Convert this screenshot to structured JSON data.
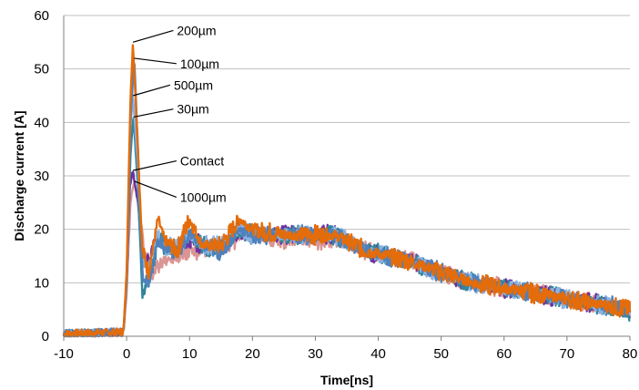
{
  "chart_data": {
    "type": "line",
    "title": "",
    "xlabel": "Time[ns]",
    "ylabel": "Discharge current [A]",
    "xlim": [
      -10,
      80
    ],
    "ylim": [
      0,
      60
    ],
    "xticks": [
      -10,
      0,
      10,
      20,
      30,
      40,
      50,
      60,
      70,
      80
    ],
    "yticks": [
      0,
      10,
      20,
      30,
      40,
      50,
      60
    ],
    "grid": "horizontal",
    "legend": "none",
    "annotations": [
      {
        "text": "200µm",
        "x": 1.0,
        "y": 55,
        "text_x": 8.0,
        "text_y": 57.2
      },
      {
        "text": "100µm",
        "x": 1.2,
        "y": 52,
        "text_x": 8.5,
        "text_y": 51.0
      },
      {
        "text": "500µm",
        "x": 1.0,
        "y": 45,
        "text_x": 7.5,
        "text_y": 47.0
      },
      {
        "text": "30µm",
        "x": 1.1,
        "y": 41,
        "text_x": 8.0,
        "text_y": 42.5
      },
      {
        "text": "Contact",
        "x": 1.0,
        "y": 31,
        "text_x": 8.5,
        "text_y": 32.8
      },
      {
        "text": "1000µm",
        "x": 1.2,
        "y": 29,
        "text_x": 8.5,
        "text_y": 26.0
      }
    ],
    "series": [
      {
        "color": "#e46c0a",
        "peak": 55,
        "variant": 0,
        "points": [
          [
            -10,
            0.5
          ],
          [
            -0.5,
            0.8
          ],
          [
            0,
            12
          ],
          [
            0.6,
            44
          ],
          [
            1.0,
            55
          ],
          [
            1.6,
            40
          ],
          [
            2.5,
            16
          ],
          [
            3.5,
            12
          ],
          [
            5,
            22
          ],
          [
            6,
            18
          ],
          [
            8,
            16
          ],
          [
            10,
            22
          ],
          [
            12,
            17
          ],
          [
            15,
            17
          ],
          [
            18,
            22
          ],
          [
            20,
            20
          ],
          [
            25,
            19
          ],
          [
            30,
            19
          ],
          [
            33,
            19
          ],
          [
            38,
            16
          ],
          [
            45,
            14
          ],
          [
            50,
            12
          ],
          [
            55,
            10
          ],
          [
            60,
            9
          ],
          [
            65,
            8
          ],
          [
            70,
            7
          ],
          [
            75,
            6
          ],
          [
            80,
            5
          ]
        ]
      },
      {
        "color": "#4f81bd",
        "peak": 52,
        "variant": 1,
        "points": [
          [
            -10,
            0.5
          ],
          [
            -0.5,
            0.8
          ],
          [
            0,
            10
          ],
          [
            0.6,
            40
          ],
          [
            1.2,
            52
          ],
          [
            1.8,
            35
          ],
          [
            2.5,
            12
          ],
          [
            3.5,
            10
          ],
          [
            5,
            18
          ],
          [
            6,
            17
          ],
          [
            8,
            16
          ],
          [
            10,
            19
          ],
          [
            12,
            17
          ],
          [
            15,
            16
          ],
          [
            18,
            20
          ],
          [
            20,
            19
          ],
          [
            25,
            19
          ],
          [
            30,
            19
          ],
          [
            33,
            19
          ],
          [
            38,
            16
          ],
          [
            45,
            14
          ],
          [
            50,
            12
          ],
          [
            55,
            10
          ],
          [
            60,
            9
          ],
          [
            65,
            8
          ],
          [
            70,
            7
          ],
          [
            75,
            6
          ],
          [
            80,
            5
          ]
        ]
      },
      {
        "color": "#8db3e2",
        "peak": 45,
        "variant": 2,
        "points": [
          [
            -10,
            0.5
          ],
          [
            -0.5,
            0.8
          ],
          [
            0,
            10
          ],
          [
            0.5,
            38
          ],
          [
            1.0,
            45
          ],
          [
            1.8,
            32
          ],
          [
            2.5,
            14
          ],
          [
            3.5,
            13
          ],
          [
            5,
            19
          ],
          [
            6,
            17
          ],
          [
            8,
            17
          ],
          [
            10,
            19
          ],
          [
            12,
            17
          ],
          [
            15,
            17
          ],
          [
            18,
            20
          ],
          [
            20,
            19
          ],
          [
            25,
            19
          ],
          [
            30,
            19
          ],
          [
            33,
            19
          ],
          [
            38,
            16
          ],
          [
            45,
            14
          ],
          [
            50,
            12
          ],
          [
            55,
            10
          ],
          [
            60,
            9
          ],
          [
            65,
            8
          ],
          [
            70,
            7
          ],
          [
            75,
            6
          ],
          [
            80,
            5
          ]
        ]
      },
      {
        "color": "#31859c",
        "peak": 41,
        "variant": 3,
        "points": [
          [
            -10,
            0.5
          ],
          [
            -0.5,
            0.8
          ],
          [
            0,
            10
          ],
          [
            0.6,
            34
          ],
          [
            1.1,
            41
          ],
          [
            1.8,
            28
          ],
          [
            2.5,
            8
          ],
          [
            3.5,
            10
          ],
          [
            5,
            18
          ],
          [
            6,
            17
          ],
          [
            8,
            16
          ],
          [
            10,
            19
          ],
          [
            12,
            17
          ],
          [
            15,
            16
          ],
          [
            18,
            20
          ],
          [
            20,
            19
          ],
          [
            25,
            19
          ],
          [
            30,
            19
          ],
          [
            33,
            19
          ],
          [
            38,
            16
          ],
          [
            45,
            14
          ],
          [
            50,
            12
          ],
          [
            55,
            10
          ],
          [
            60,
            9
          ],
          [
            65,
            8
          ],
          [
            70,
            7
          ],
          [
            75,
            6
          ],
          [
            80,
            4
          ]
        ]
      },
      {
        "color": "#7030a0",
        "peak": 31,
        "variant": 4,
        "points": [
          [
            -10,
            0.5
          ],
          [
            -0.5,
            0.8
          ],
          [
            0,
            10
          ],
          [
            0.5,
            28
          ],
          [
            1.0,
            31
          ],
          [
            1.8,
            25
          ],
          [
            2.5,
            15
          ],
          [
            3.5,
            14
          ],
          [
            5,
            18
          ],
          [
            6,
            17
          ],
          [
            8,
            16
          ],
          [
            10,
            18
          ],
          [
            12,
            17
          ],
          [
            15,
            16
          ],
          [
            18,
            20
          ],
          [
            20,
            19
          ],
          [
            25,
            19
          ],
          [
            30,
            19
          ],
          [
            33,
            19
          ],
          [
            38,
            16
          ],
          [
            45,
            14
          ],
          [
            50,
            12
          ],
          [
            55,
            10
          ],
          [
            60,
            9
          ],
          [
            65,
            8
          ],
          [
            70,
            7
          ],
          [
            75,
            6
          ],
          [
            80,
            5
          ]
        ]
      },
      {
        "color": "#d99694",
        "peak": 29,
        "variant": 5,
        "points": [
          [
            -10,
            0.3
          ],
          [
            -0.5,
            0.5
          ],
          [
            0,
            8
          ],
          [
            0.6,
            25
          ],
          [
            1.2,
            29
          ],
          [
            2.0,
            24
          ],
          [
            3,
            15
          ],
          [
            4,
            12
          ],
          [
            5,
            13
          ],
          [
            6,
            14
          ],
          [
            8,
            15
          ],
          [
            10,
            16
          ],
          [
            12,
            16
          ],
          [
            15,
            16
          ],
          [
            18,
            19
          ],
          [
            20,
            19
          ],
          [
            25,
            18
          ],
          [
            30,
            18
          ],
          [
            33,
            18
          ],
          [
            38,
            16
          ],
          [
            45,
            14
          ],
          [
            50,
            12
          ],
          [
            55,
            10
          ],
          [
            60,
            9
          ],
          [
            65,
            8
          ],
          [
            70,
            7
          ],
          [
            75,
            6
          ],
          [
            80,
            5
          ]
        ]
      }
    ]
  }
}
